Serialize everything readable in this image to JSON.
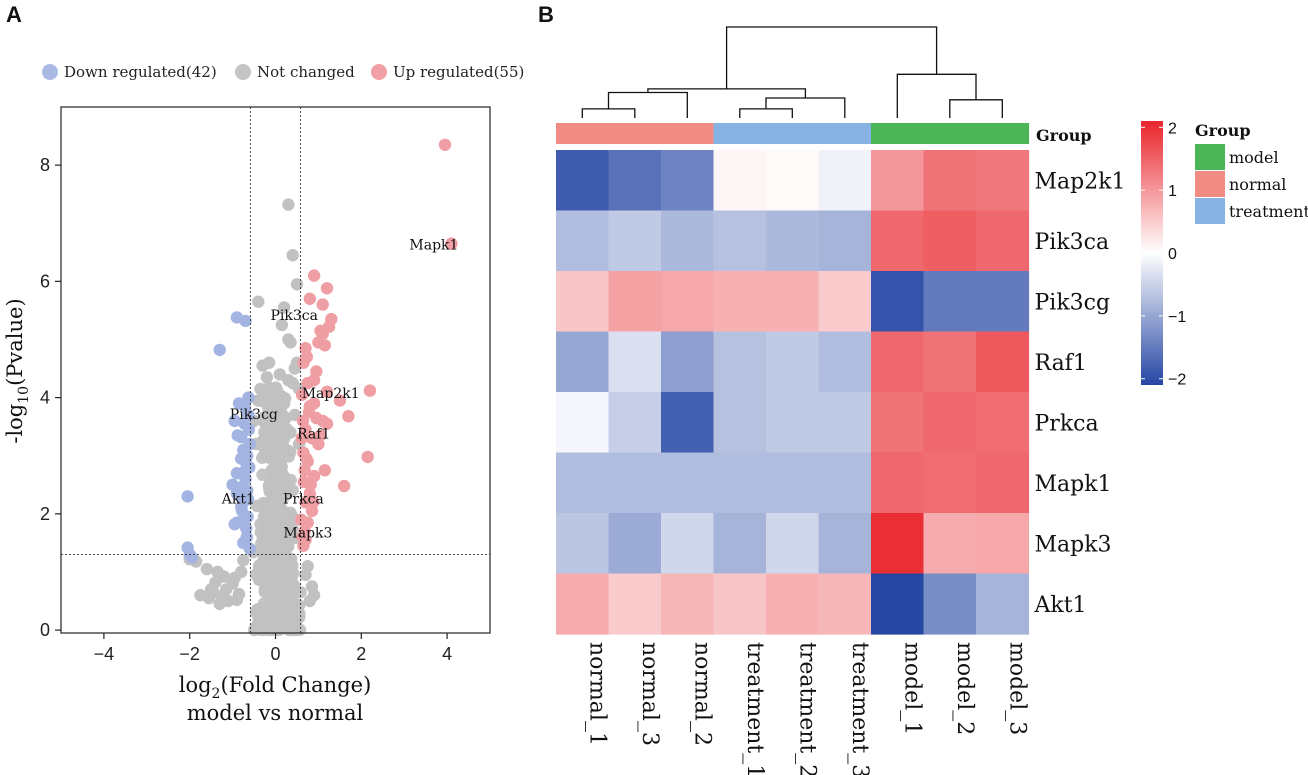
{
  "panels": {
    "a": "A",
    "b": "B"
  },
  "chart_data": [
    {
      "type": "scatter",
      "panel": "A",
      "title": "",
      "xlabel_prefix": "log",
      "xlabel_sub": "2",
      "xlabel_suffix": "(Fold Change)",
      "xlabel_line2": "model vs normal",
      "ylabel_prefix": "-log",
      "ylabel_sub": "10",
      "ylabel_suffix": "(Pvalue)",
      "xlim": [
        -5,
        5
      ],
      "ylim": [
        -0.05,
        9
      ],
      "xticks": [
        -4,
        -2,
        0,
        2,
        4
      ],
      "yticks": [
        0,
        2,
        4,
        6,
        8
      ],
      "xtick_labels": [
        "−4",
        "−2",
        "0",
        "2",
        "4"
      ],
      "ytick_labels": [
        "0",
        "2",
        "4",
        "6",
        "8"
      ],
      "thresholds": {
        "x": [
          -0.585,
          0.585
        ],
        "y": 1.3
      },
      "legend": {
        "position": "top",
        "items": [
          {
            "label": "Down regulated(42)",
            "color": "#a9b9e4"
          },
          {
            "label": "Not changed",
            "color": "#c4c4c4"
          },
          {
            "label": "Up regulated(55)",
            "color": "#f1a1a6"
          }
        ]
      },
      "colors": {
        "down": "#a3b4e2",
        "nc": "#c1c1c1",
        "up": "#ef9ea3"
      },
      "series": [
        {
          "name": "Down regulated",
          "points": [
            [
              -2.05,
              2.3
            ],
            [
              -2.05,
              1.42
            ],
            [
              -2.0,
              1.3
            ],
            [
              -1.95,
              1.25
            ],
            [
              -1.3,
              4.82
            ],
            [
              -0.9,
              5.38
            ],
            [
              -0.7,
              5.32
            ],
            [
              -1.0,
              2.5
            ],
            [
              -0.9,
              1.85
            ],
            [
              -0.95,
              1.82
            ],
            [
              -0.8,
              3.32
            ],
            [
              -0.85,
              3.9
            ],
            [
              -0.72,
              3.85
            ],
            [
              -0.75,
              3.1
            ],
            [
              -0.8,
              2.95
            ],
            [
              -0.7,
              2.75
            ],
            [
              -0.9,
              2.35
            ],
            [
              -0.75,
              2.2
            ],
            [
              -0.7,
              2.6
            ],
            [
              -0.65,
              1.95
            ],
            [
              -0.6,
              3.2
            ],
            [
              -0.63,
              3.7
            ],
            [
              -0.78,
              2.05
            ],
            [
              -0.82,
              2.45
            ],
            [
              -0.68,
              1.75
            ],
            [
              -0.66,
              2.4
            ],
            [
              -0.95,
              3.6
            ],
            [
              -0.7,
              2.9
            ],
            [
              -0.62,
              3.45
            ],
            [
              -0.9,
              2.7
            ],
            [
              -0.67,
              1.6
            ],
            [
              -0.75,
              1.5
            ],
            [
              -0.64,
              2.25
            ],
            [
              -0.6,
              1.4
            ],
            [
              -0.8,
              2.12
            ],
            [
              -0.72,
              3.55
            ],
            [
              -0.7,
              2.3
            ],
            [
              -0.61,
              2.8
            ],
            [
              -0.66,
              3.0
            ],
            [
              -0.74,
              1.9
            ],
            [
              -0.63,
              4.0
            ],
            [
              -0.88,
              3.35
            ]
          ]
        },
        {
          "name": "Up regulated",
          "points": [
            [
              3.95,
              8.35
            ],
            [
              4.1,
              6.65
            ],
            [
              0.9,
              6.1
            ],
            [
              1.2,
              5.88
            ],
            [
              1.1,
              5.6
            ],
            [
              0.8,
              5.7
            ],
            [
              1.3,
              5.35
            ],
            [
              1.05,
              5.15
            ],
            [
              1.1,
              5.1
            ],
            [
              1.0,
              4.95
            ],
            [
              1.15,
              4.9
            ],
            [
              0.7,
              4.85
            ],
            [
              0.65,
              4.6
            ],
            [
              0.9,
              4.3
            ],
            [
              0.75,
              4.25
            ],
            [
              1.2,
              4.1
            ],
            [
              1.5,
              3.95
            ],
            [
              2.2,
              4.12
            ],
            [
              1.7,
              3.68
            ],
            [
              0.8,
              3.85
            ],
            [
              0.95,
              3.65
            ],
            [
              1.1,
              3.6
            ],
            [
              1.2,
              3.55
            ],
            [
              0.85,
              3.3
            ],
            [
              1.0,
              3.2
            ],
            [
              0.7,
              3.45
            ],
            [
              0.65,
              3.05
            ],
            [
              0.75,
              2.9
            ],
            [
              2.15,
              2.98
            ],
            [
              1.15,
              2.75
            ],
            [
              0.9,
              2.65
            ],
            [
              1.6,
              2.48
            ],
            [
              0.8,
              2.35
            ],
            [
              0.7,
              2.2
            ],
            [
              0.85,
              2.05
            ],
            [
              0.75,
              1.85
            ],
            [
              0.68,
              1.7
            ],
            [
              0.7,
              1.55
            ],
            [
              0.65,
              1.45
            ],
            [
              0.9,
              3.9
            ],
            [
              0.62,
              4.05
            ],
            [
              0.66,
              2.55
            ],
            [
              0.72,
              2.95
            ],
            [
              0.78,
              3.75
            ],
            [
              0.64,
              3.6
            ],
            [
              1.25,
              5.22
            ],
            [
              0.95,
              4.45
            ],
            [
              0.6,
              1.9
            ],
            [
              0.68,
              2.75
            ],
            [
              0.82,
              2.5
            ],
            [
              0.61,
              3.3
            ],
            [
              0.73,
              4.7
            ],
            [
              0.88,
              2.2
            ],
            [
              0.63,
              1.6
            ],
            [
              1.05,
              3.35
            ]
          ]
        },
        {
          "name": "Not changed",
          "points": [
            [
              0.3,
              7.32
            ],
            [
              0.4,
              6.45
            ],
            [
              0.5,
              5.95
            ],
            [
              -0.4,
              5.65
            ],
            [
              0.2,
              5.55
            ],
            [
              0.15,
              5.25
            ],
            [
              0.3,
              5.0
            ],
            [
              0.35,
              4.95
            ],
            [
              -0.15,
              4.6
            ],
            [
              0.5,
              4.6
            ],
            [
              0.45,
              4.5
            ],
            [
              -0.3,
              4.55
            ],
            [
              0.1,
              4.4
            ],
            [
              -0.2,
              4.35
            ],
            [
              0.3,
              4.3
            ],
            [
              0.4,
              4.25
            ],
            [
              -0.35,
              4.15
            ],
            [
              0.55,
              4.15
            ],
            [
              0.2,
              3.9
            ],
            [
              -0.4,
              3.95
            ],
            [
              -0.5,
              3.6
            ],
            [
              0.45,
              3.7
            ],
            [
              -0.25,
              3.3
            ],
            [
              0.35,
              3.4
            ],
            [
              -0.45,
              3.2
            ],
            [
              0.55,
              3.2
            ],
            [
              -1.75,
              0.6
            ],
            [
              -1.5,
              0.7
            ],
            [
              -1.4,
              0.82
            ],
            [
              -1.2,
              0.92
            ],
            [
              -1.0,
              0.8
            ],
            [
              -0.85,
              0.62
            ],
            [
              -0.9,
              0.52
            ],
            [
              -1.1,
              0.5
            ],
            [
              -1.3,
              0.45
            ],
            [
              -1.55,
              0.55
            ],
            [
              -1.85,
              1.18
            ],
            [
              -2.0,
              1.22
            ],
            [
              -1.6,
              1.05
            ],
            [
              -1.35,
              1.0
            ],
            [
              -1.15,
              0.7
            ],
            [
              -0.95,
              0.9
            ],
            [
              -0.8,
              1.0
            ],
            [
              -0.75,
              1.2
            ],
            [
              0.8,
              0.5
            ],
            [
              0.9,
              0.6
            ],
            [
              0.85,
              0.75
            ],
            [
              0.7,
              0.95
            ],
            [
              0.75,
              1.1
            ],
            [
              -1.45,
              0.65
            ],
            [
              -1.25,
              0.58
            ]
          ]
        }
      ],
      "annotations": [
        {
          "label": "Mapk1",
          "x": 4.1,
          "y": 6.65
        },
        {
          "label": "Pik3ca",
          "x": 0.35,
          "y": 5.35
        },
        {
          "label": "Map2k1",
          "x": 0.75,
          "y": 4.1
        },
        {
          "label": "Pik3cg",
          "x": -0.6,
          "y": 3.7
        },
        {
          "label": "Raf1",
          "x": 0.5,
          "y": 3.4
        },
        {
          "label": "Akt1",
          "x": -0.6,
          "y": 2.3
        },
        {
          "label": "Prkca",
          "x": 0.5,
          "y": 2.3
        },
        {
          "label": "Mapk3",
          "x": 0.65,
          "y": 1.75
        }
      ]
    },
    {
      "type": "heatmap",
      "panel": "B",
      "title": "",
      "rows": [
        "Map2k1",
        "Pik3ca",
        "Pik3cg",
        "Raf1",
        "Prkca",
        "Mapk1",
        "Mapk3",
        "Akt1"
      ],
      "columns": [
        "normal_1",
        "normal_3",
        "normal_2",
        "treatment_1",
        "treatment_2",
        "treatment_3",
        "model_1",
        "model_2",
        "model_3"
      ],
      "column_groups": [
        "normal",
        "normal",
        "normal",
        "treatment",
        "treatment",
        "treatment",
        "model",
        "model",
        "model"
      ],
      "values": [
        [
          -1.85,
          -1.6,
          -1.4,
          0.1,
          0.05,
          -0.15,
          1.0,
          1.35,
          1.3
        ],
        [
          -0.75,
          -0.6,
          -0.8,
          -0.7,
          -0.8,
          -0.85,
          1.45,
          1.55,
          1.45
        ],
        [
          0.55,
          0.9,
          0.85,
          0.75,
          0.75,
          0.5,
          -1.95,
          -1.5,
          -1.5
        ],
        [
          -1.0,
          -0.35,
          -1.1,
          -0.7,
          -0.6,
          -0.75,
          1.45,
          1.35,
          1.6
        ],
        [
          -0.1,
          -0.55,
          -1.8,
          -0.7,
          -0.6,
          -0.6,
          1.35,
          1.45,
          1.4
        ],
        [
          -0.75,
          -0.75,
          -0.75,
          -0.75,
          -0.75,
          -0.75,
          1.45,
          1.4,
          1.45
        ],
        [
          -0.65,
          -0.95,
          -0.45,
          -0.85,
          -0.45,
          -0.85,
          2.0,
          0.8,
          0.85
        ],
        [
          0.8,
          0.5,
          0.7,
          0.55,
          0.75,
          0.7,
          -2.1,
          -1.3,
          -0.85
        ]
      ],
      "color_scale": {
        "min": -2.1,
        "max": 2.1,
        "low": "#2546a3",
        "mid": "#ffffff",
        "high": "#e8252b"
      },
      "colorbar_ticks": [
        2,
        1,
        0,
        -1,
        -2
      ],
      "colorbar_tick_labels": [
        "2",
        "1",
        "0",
        "−1",
        "−2"
      ],
      "annotation_label": "Group",
      "group_legend": {
        "title": "Group",
        "items": [
          {
            "label": "model",
            "color": "#4bb557"
          },
          {
            "label": "normal",
            "color": "#f18c85"
          },
          {
            "label": "treatment",
            "color": "#86b3e2"
          }
        ]
      },
      "dendrogram": [
        [
          0,
          1,
          0.1
        ],
        [
          3,
          4,
          0.1
        ],
        [
          10,
          5,
          0.22
        ],
        [
          7,
          8,
          0.2
        ],
        [
          9,
          2,
          0.28
        ],
        [
          6,
          12,
          0.48
        ],
        [
          13,
          11,
          0.32
        ],
        [
          15,
          14,
          1.0
        ]
      ]
    }
  ]
}
